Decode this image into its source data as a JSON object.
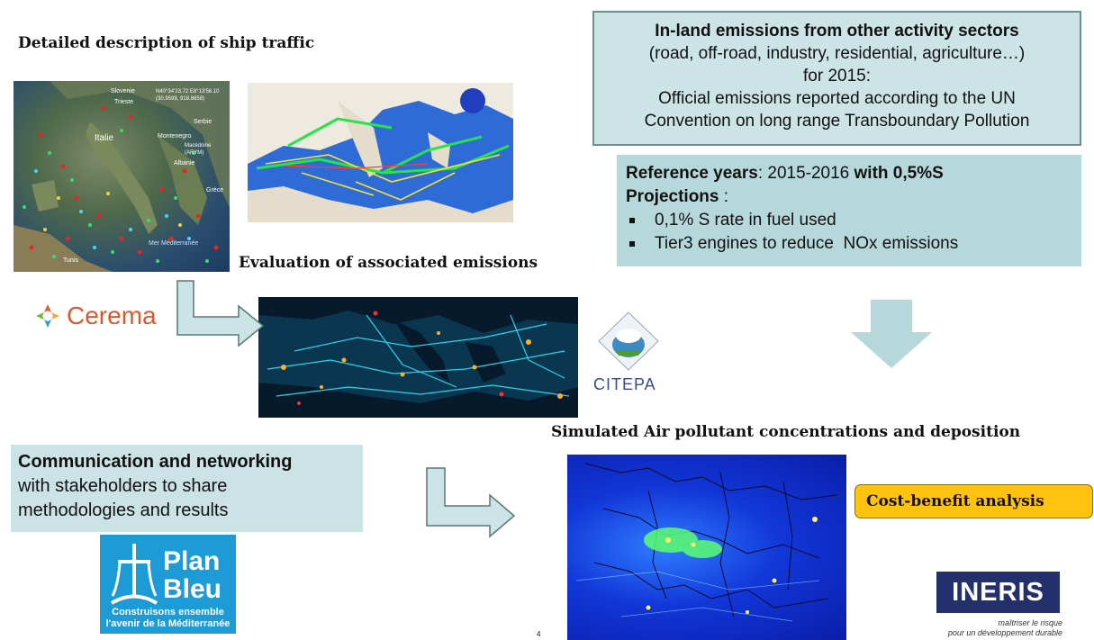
{
  "titles": {
    "ship_traffic": "Detailed description of ship traffic",
    "evaluation": "Evaluation of associated emissions",
    "simulated": "Simulated Air pollutant concentrations and deposition"
  },
  "inland_box": {
    "heading": "In-land emissions from other activity sectors",
    "line2": "(road, off-road, industry, residential, agriculture…)",
    "line3": "for 2015:",
    "line4": "Official emissions reported according to the UN",
    "line5": "Convention on long range Transboundary Pollution"
  },
  "reference_box": {
    "ref_label": "Reference years",
    "ref_years": ": 2015-2016 ",
    "ref_suffix": "with 0,5%S",
    "projections_label": "Projections",
    "projections_colon": " :",
    "bullets": [
      "0,1% S rate in fuel used",
      "Tier3 engines to reduce  NOx emissions"
    ]
  },
  "communication_box": {
    "heading": "Communication and networking",
    "line2": "with stakeholders to share",
    "line3": "methodologies and results"
  },
  "cost_benefit": "Cost-benefit analysis",
  "logos": {
    "cerema": "Cerema",
    "citepa": "CITEPA",
    "planbleu_title_1": "Plan",
    "planbleu_title_2": "Bleu",
    "planbleu_tag_1": "Construisons ensemble",
    "planbleu_tag_2": "l'avenir de la Méditerranée",
    "ineris": "INERIS",
    "ineris_tag_1": "maîtriser le risque",
    "ineris_tag_2": "pour un développement durable"
  },
  "map_labels": {
    "italie": "Italie",
    "slovenia": "Slovenie",
    "trieste": "Trieste",
    "serbia": "Serbie",
    "montenegro": "Montenegro",
    "macedonia": "Macédoine (ARYM)",
    "albania": "Albanie",
    "greece": "Grèce",
    "tunis": "Tunis",
    "mer": "Mer Méditerranée",
    "coords": "N40°34'23.72 E8°13'56.10 (30.9599, 918.8658)"
  },
  "page_number": "4",
  "colors": {
    "box_light": "#cde4e6",
    "box_mid": "#b7d8db",
    "arrow_fill": "#cde4e6",
    "cost_fill": "#ffc20e",
    "planbleu": "#1d9bd7",
    "ineris": "#24306b"
  }
}
